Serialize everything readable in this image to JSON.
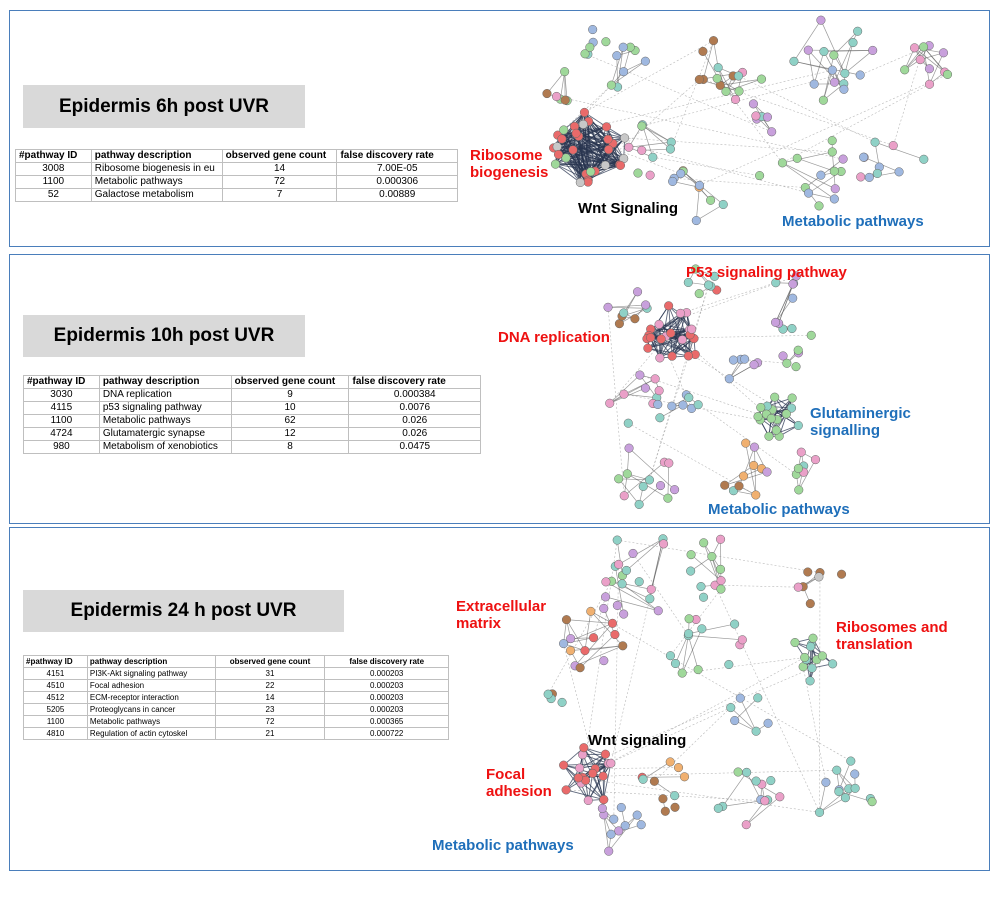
{
  "panels": [
    {
      "title": "Epidermis 6h post UVR",
      "headers": [
        "#pathway ID",
        "pathway description",
        "observed gene count",
        "false discovery rate"
      ],
      "rows": [
        [
          "3008",
          "Ribosome biogenesis in eu",
          "14",
          "7.00E-05"
        ],
        [
          "1100",
          "Metabolic pathways",
          "72",
          "0.000306"
        ],
        [
          "52",
          "Galactose metabolism",
          "7",
          "0.00889"
        ]
      ],
      "labels": [
        {
          "text": "Ribosome\nbiogenesis",
          "color": "#ee1111"
        },
        {
          "text": "Wnt Signaling",
          "color": "#000000"
        },
        {
          "text": "Metabolic pathways",
          "color": "#1f6fba"
        }
      ]
    },
    {
      "title": "Epidermis 10h post UVR",
      "headers": [
        "#pathway ID",
        "pathway description",
        "observed gene count",
        "false discovery rate"
      ],
      "rows": [
        [
          "3030",
          "DNA replication",
          "9",
          "0.000384"
        ],
        [
          "4115",
          "p53 signaling pathway",
          "10",
          "0.0076"
        ],
        [
          "1100",
          "Metabolic pathways",
          "62",
          "0.026"
        ],
        [
          "4724",
          "Glutamatergic synapse",
          "12",
          "0.026"
        ],
        [
          "980",
          "Metabolism of xenobiotics",
          "8",
          "0.0475"
        ]
      ],
      "labels": [
        {
          "text": "P53 signaling pathway",
          "color": "#ee1111"
        },
        {
          "text": "DNA replication",
          "color": "#ee1111"
        },
        {
          "text": "Glutaminergic\nsignalling",
          "color": "#1f6fba"
        },
        {
          "text": "Metabolic pathways",
          "color": "#1f6fba"
        }
      ]
    },
    {
      "title": "Epidermis 24 h post UVR",
      "headers": [
        "#pathway ID",
        "pathway description",
        "observed gene count",
        "false discovery rate"
      ],
      "rows": [
        [
          "4151",
          "PI3K-Akt signaling pathway",
          "31",
          "0.000203"
        ],
        [
          "4510",
          "Focal adhesion",
          "22",
          "0.000203"
        ],
        [
          "4512",
          "ECM-receptor interaction",
          "14",
          "0.000203"
        ],
        [
          "5205",
          "Proteoglycans in cancer",
          "23",
          "0.000203"
        ],
        [
          "1100",
          "Metabolic pathways",
          "72",
          "0.000365"
        ],
        [
          "4810",
          "Regulation of actin cytoskel",
          "21",
          "0.000722"
        ]
      ],
      "labels": [
        {
          "text": "Extracellular\nmatrix",
          "color": "#ee1111"
        },
        {
          "text": "Ribosomes and\ntranslation",
          "color": "#ee1111"
        },
        {
          "text": "Wnt signaling",
          "color": "#000000"
        },
        {
          "text": "Focal\nadhesion",
          "color": "#ee1111"
        },
        {
          "text": "Metabolic pathways",
          "color": "#1f6fba"
        }
      ]
    }
  ]
}
